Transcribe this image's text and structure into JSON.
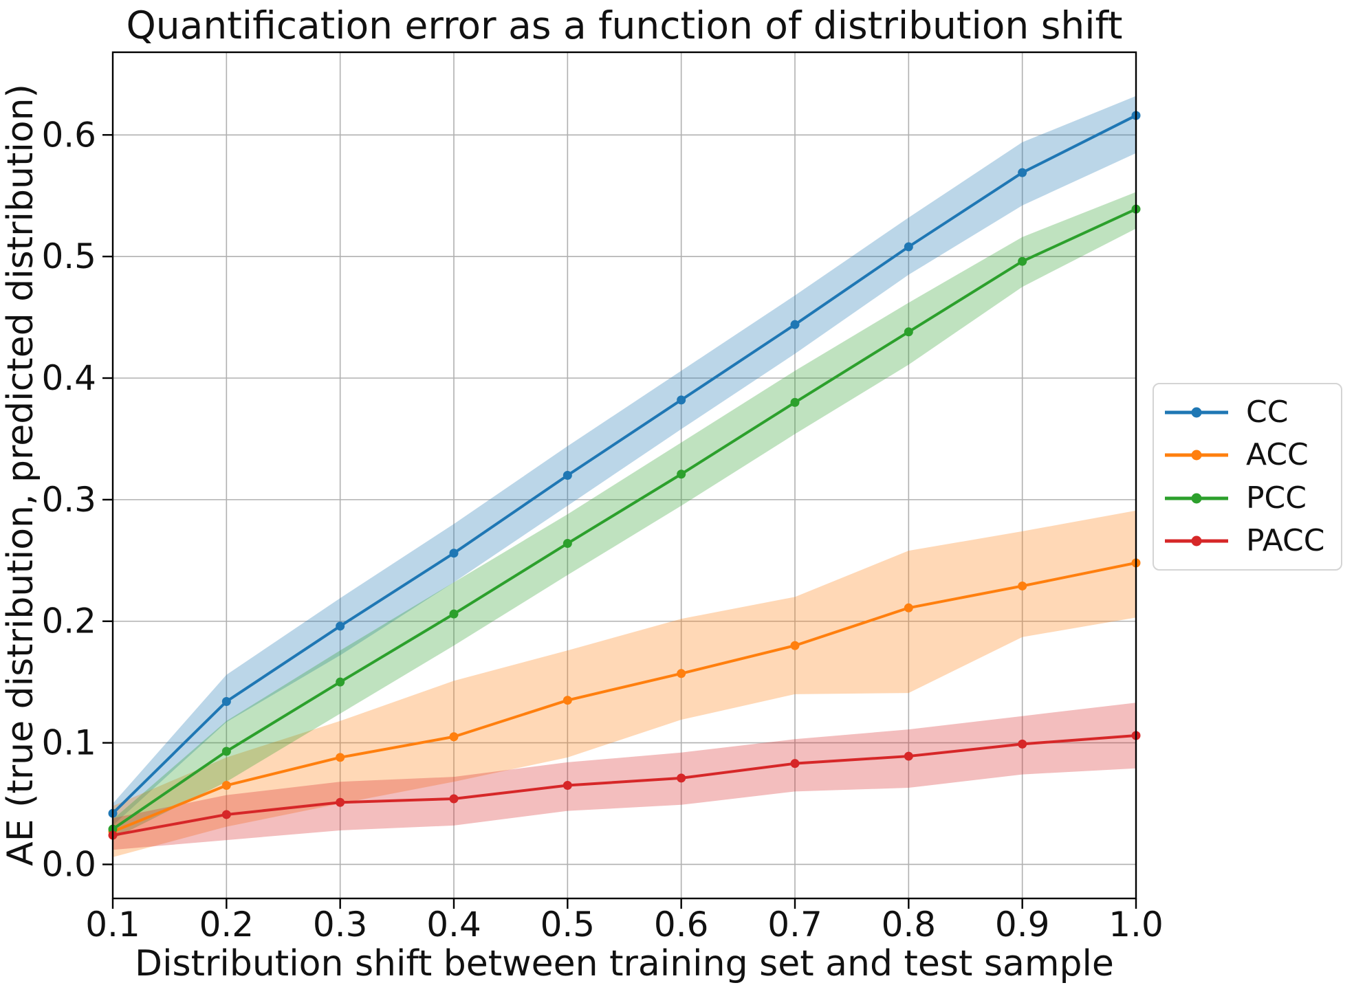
{
  "chart_data": {
    "type": "line",
    "title": "Quantification error as a function of distribution shift",
    "xlabel": "Distribution shift between training set and test sample",
    "ylabel": "AE (true distribution, predicted distribution)",
    "x": [
      0.1,
      0.2,
      0.3,
      0.4,
      0.5,
      0.6,
      0.7,
      0.8,
      0.9,
      1.0
    ],
    "x_tick_labels": [
      "0.1",
      "0.2",
      "0.3",
      "0.4",
      "0.5",
      "0.6",
      "0.7",
      "0.8",
      "0.9",
      "1.0"
    ],
    "y_ticks": [
      0.0,
      0.1,
      0.2,
      0.3,
      0.4,
      0.5,
      0.6
    ],
    "y_tick_labels": [
      "0.0",
      "0.1",
      "0.2",
      "0.3",
      "0.4",
      "0.5",
      "0.6"
    ],
    "xlim": [
      0.1,
      1.0
    ],
    "ylim": [
      -0.028,
      0.668
    ],
    "grid": true,
    "legend_position": "center right",
    "band_opacity": 0.3,
    "series": [
      {
        "name": "CC",
        "color": "#1f77b4",
        "values": [
          0.042,
          0.134,
          0.196,
          0.256,
          0.32,
          0.382,
          0.444,
          0.508,
          0.569,
          0.616
        ],
        "band_low": [
          0.032,
          0.117,
          0.172,
          0.232,
          0.295,
          0.358,
          0.42,
          0.485,
          0.542,
          0.585
        ],
        "band_high": [
          0.05,
          0.156,
          0.219,
          0.28,
          0.344,
          0.406,
          0.468,
          0.532,
          0.594,
          0.632
        ]
      },
      {
        "name": "ACC",
        "color": "#ff7f0e",
        "values": [
          0.027,
          0.065,
          0.088,
          0.105,
          0.135,
          0.157,
          0.18,
          0.211,
          0.229,
          0.248
        ],
        "band_low": [
          0.006,
          0.031,
          0.05,
          0.068,
          0.088,
          0.119,
          0.14,
          0.141,
          0.187,
          0.203
        ],
        "band_high": [
          0.048,
          0.088,
          0.118,
          0.151,
          0.176,
          0.202,
          0.22,
          0.258,
          0.274,
          0.291
        ]
      },
      {
        "name": "PCC",
        "color": "#2ca02c",
        "values": [
          0.029,
          0.093,
          0.15,
          0.206,
          0.264,
          0.321,
          0.38,
          0.438,
          0.496,
          0.539
        ],
        "band_low": [
          0.021,
          0.068,
          0.124,
          0.18,
          0.238,
          0.295,
          0.354,
          0.411,
          0.475,
          0.523
        ],
        "band_high": [
          0.037,
          0.118,
          0.176,
          0.232,
          0.288,
          0.347,
          0.406,
          0.462,
          0.516,
          0.553
        ]
      },
      {
        "name": "PACC",
        "color": "#d62728",
        "values": [
          0.024,
          0.041,
          0.051,
          0.054,
          0.065,
          0.071,
          0.083,
          0.089,
          0.099,
          0.106
        ],
        "band_low": [
          0.012,
          0.02,
          0.028,
          0.032,
          0.044,
          0.049,
          0.06,
          0.063,
          0.074,
          0.079
        ],
        "band_high": [
          0.038,
          0.057,
          0.068,
          0.072,
          0.084,
          0.092,
          0.103,
          0.111,
          0.122,
          0.133
        ]
      }
    ],
    "style": {
      "grid_color": "#b0b0b0",
      "spine_color": "#000000",
      "tick_label_color": "#111111",
      "background": "#ffffff"
    }
  }
}
